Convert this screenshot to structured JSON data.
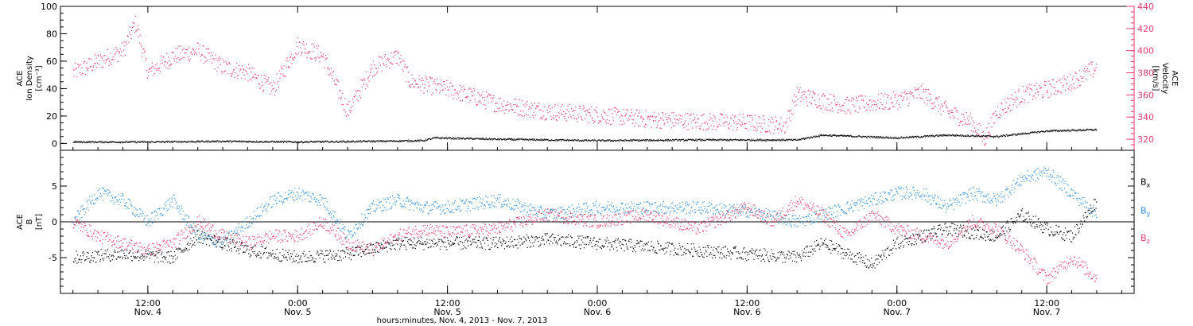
{
  "chart_data": [
    {
      "type": "scatter",
      "panel": "ion-density-velocity",
      "ylabel_left": [
        "ACE",
        "Ion Density",
        "[cm⁻³]"
      ],
      "ylabel_right": [
        "ACE",
        "Velocity",
        "[km/s]"
      ],
      "left_ylim": [
        -5,
        100
      ],
      "left_yticks": [
        "0",
        "20",
        "40",
        "60",
        "80",
        "100"
      ],
      "right_ylim": [
        310,
        440
      ],
      "right_yticks": [
        "320",
        "340",
        "360",
        "380",
        "400",
        "420",
        "440"
      ],
      "x_range_hours": [
        6,
        88
      ],
      "series": [
        {
          "axis": "left",
          "color": "#000000",
          "points": [
            [
              6,
              1
            ],
            [
              12,
              1
            ],
            [
              18,
              1.5
            ],
            [
              24,
              1
            ],
            [
              30,
              1.5
            ],
            [
              34,
              2
            ],
            [
              35,
              4
            ],
            [
              40,
              3
            ],
            [
              48,
              2
            ],
            [
              56,
              2.5
            ],
            [
              64,
              2.5
            ],
            [
              66,
              6
            ],
            [
              72,
              4
            ],
            [
              76,
              6
            ],
            [
              80,
              5
            ],
            [
              84,
              9
            ],
            [
              88,
              10
            ]
          ]
        },
        {
          "axis": "right",
          "color": "#e8396a",
          "points": [
            [
              6,
              380
            ],
            [
              8,
              390
            ],
            [
              10,
              400
            ],
            [
              11,
              425
            ],
            [
              12,
              380
            ],
            [
              14,
              395
            ],
            [
              16,
              400
            ],
            [
              18,
              385
            ],
            [
              20,
              380
            ],
            [
              22,
              365
            ],
            [
              24,
              405
            ],
            [
              26,
              395
            ],
            [
              28,
              345
            ],
            [
              30,
              385
            ],
            [
              32,
              395
            ],
            [
              33,
              372
            ],
            [
              36,
              365
            ],
            [
              40,
              352
            ],
            [
              44,
              345
            ],
            [
              48,
              342
            ],
            [
              52,
              338
            ],
            [
              56,
              336
            ],
            [
              60,
              335
            ],
            [
              63,
              332
            ],
            [
              64,
              360
            ],
            [
              68,
              350
            ],
            [
              72,
              355
            ],
            [
              74,
              362
            ],
            [
              76,
              345
            ],
            [
              78,
              335
            ],
            [
              79,
              320
            ],
            [
              80,
              345
            ],
            [
              82,
              360
            ],
            [
              84,
              365
            ],
            [
              86,
              372
            ],
            [
              88,
              385
            ]
          ]
        }
      ]
    },
    {
      "type": "scatter",
      "panel": "magnetic-field",
      "ylabel": [
        "ACE",
        "B",
        "[nT]"
      ],
      "ylim": [
        -10,
        10
      ],
      "yticks": [
        "5",
        "0",
        "-5"
      ],
      "zero_line": true,
      "x_range_hours": [
        6,
        88
      ],
      "series": [
        {
          "name": "Bx",
          "color": "#000000",
          "points": [
            [
              6,
              -5
            ],
            [
              10,
              -4.5
            ],
            [
              14,
              -5
            ],
            [
              16,
              -2
            ],
            [
              20,
              -4
            ],
            [
              24,
              -5
            ],
            [
              28,
              -4.5
            ],
            [
              32,
              -3
            ],
            [
              36,
              -3
            ],
            [
              40,
              -3
            ],
            [
              44,
              -2.5
            ],
            [
              48,
              -3
            ],
            [
              52,
              -3.5
            ],
            [
              56,
              -4
            ],
            [
              60,
              -4.5
            ],
            [
              64,
              -5
            ],
            [
              66,
              -3
            ],
            [
              70,
              -6
            ],
            [
              72,
              -3
            ],
            [
              76,
              -1
            ],
            [
              80,
              -2
            ],
            [
              82,
              1
            ],
            [
              84,
              -1
            ],
            [
              86,
              -2
            ],
            [
              88,
              3
            ]
          ]
        },
        {
          "name": "By",
          "color": "#2c8ee0",
          "points": [
            [
              6,
              0
            ],
            [
              8,
              4
            ],
            [
              10,
              3
            ],
            [
              12,
              0
            ],
            [
              14,
              3
            ],
            [
              16,
              -2
            ],
            [
              18,
              -3
            ],
            [
              20,
              0
            ],
            [
              22,
              3
            ],
            [
              24,
              4
            ],
            [
              26,
              3
            ],
            [
              28,
              -2
            ],
            [
              30,
              2
            ],
            [
              32,
              3
            ],
            [
              34,
              2
            ],
            [
              36,
              2
            ],
            [
              40,
              3
            ],
            [
              44,
              1
            ],
            [
              48,
              2
            ],
            [
              52,
              2
            ],
            [
              56,
              2
            ],
            [
              60,
              1.5
            ],
            [
              64,
              0
            ],
            [
              66,
              1
            ],
            [
              68,
              2
            ],
            [
              70,
              3
            ],
            [
              72,
              4
            ],
            [
              74,
              4
            ],
            [
              76,
              2
            ],
            [
              78,
              4
            ],
            [
              80,
              3
            ],
            [
              82,
              6
            ],
            [
              84,
              7
            ],
            [
              86,
              4
            ],
            [
              88,
              1
            ]
          ]
        },
        {
          "name": "Bz",
          "color": "#e8396a",
          "points": [
            [
              6,
              0
            ],
            [
              8,
              -2
            ],
            [
              10,
              -3
            ],
            [
              12,
              -4
            ],
            [
              14,
              -3
            ],
            [
              16,
              0
            ],
            [
              18,
              -2
            ],
            [
              20,
              -3
            ],
            [
              22,
              -2
            ],
            [
              24,
              -2
            ],
            [
              26,
              0
            ],
            [
              28,
              -3
            ],
            [
              30,
              -4
            ],
            [
              32,
              -2
            ],
            [
              34,
              -1
            ],
            [
              36,
              -1.5
            ],
            [
              40,
              -1
            ],
            [
              44,
              1
            ],
            [
              48,
              0
            ],
            [
              52,
              1
            ],
            [
              56,
              -1
            ],
            [
              60,
              2
            ],
            [
              62,
              0
            ],
            [
              64,
              3
            ],
            [
              66,
              1
            ],
            [
              68,
              -2
            ],
            [
              70,
              1
            ],
            [
              72,
              -1
            ],
            [
              74,
              -2
            ],
            [
              76,
              -3
            ],
            [
              78,
              0
            ],
            [
              80,
              -1
            ],
            [
              82,
              -4
            ],
            [
              84,
              -8
            ],
            [
              86,
              -5
            ],
            [
              88,
              -8
            ]
          ]
        }
      ],
      "legend": [
        {
          "base": "B",
          "sub": "x",
          "color": "#000000"
        },
        {
          "base": "B",
          "sub": "y",
          "color": "#2c8ee0"
        },
        {
          "base": "B",
          "sub": "z",
          "color": "#e8396a"
        }
      ]
    }
  ],
  "x_axis": {
    "title": "hours:minutes, Nov.  4, 2013 - Nov.  7, 2013",
    "labels": [
      {
        "hour": 12,
        "time": "12:00",
        "date": "Nov. 4"
      },
      {
        "hour": 24,
        "time": "0:00",
        "date": "Nov. 5"
      },
      {
        "hour": 36,
        "time": "12:00",
        "date": "Nov. 5"
      },
      {
        "hour": 48,
        "time": "0:00",
        "date": "Nov. 6"
      },
      {
        "hour": 60,
        "time": "12:00",
        "date": "Nov. 6"
      },
      {
        "hour": 72,
        "time": "0:00",
        "date": "Nov. 7"
      },
      {
        "hour": 84,
        "time": "12:00",
        "date": "Nov. 7"
      }
    ],
    "major_tick_hours": [
      12,
      24,
      36,
      48,
      60,
      72,
      84
    ],
    "minor_tick_step_hours": 2,
    "range_hours": [
      5,
      91
    ]
  }
}
